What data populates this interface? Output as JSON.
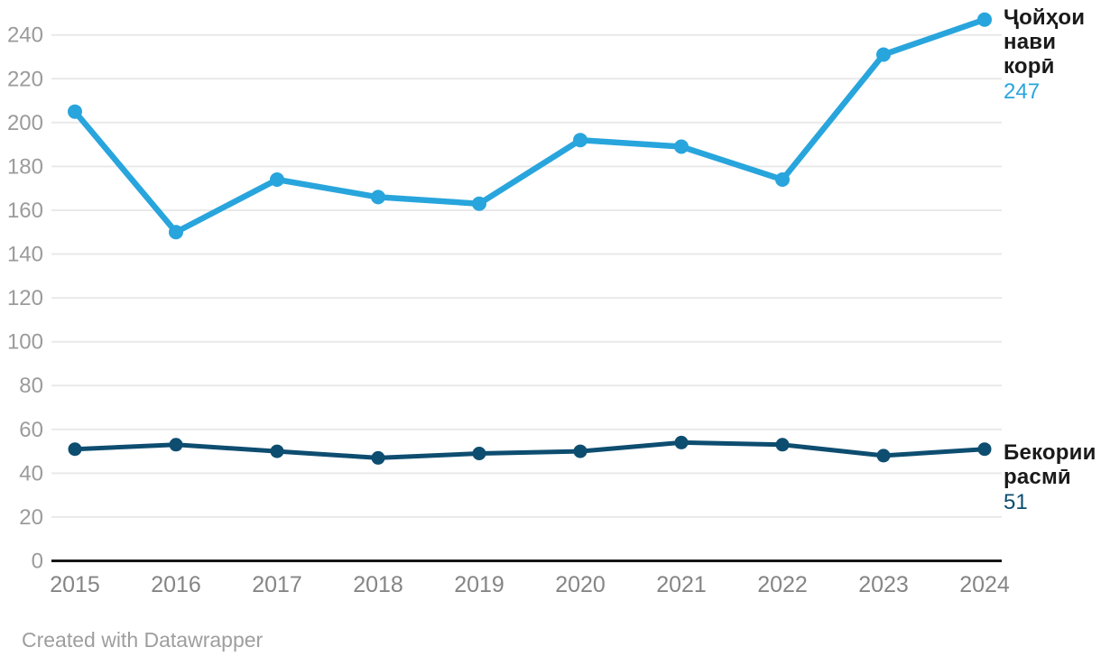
{
  "footer": {
    "credit": "Created with Datawrapper"
  },
  "colors": {
    "series_light": "#28a5dc",
    "series_dark": "#0d4d70",
    "grid": "#e9e9e9",
    "axis": "#161616",
    "ytick_text": "#9b9b9b",
    "xtick_text": "#858585",
    "legend_text": "#1a1a1a",
    "footer_text": "#9e9e9e"
  },
  "chart_data": {
    "type": "line",
    "x": [
      "2015",
      "2016",
      "2017",
      "2018",
      "2019",
      "2020",
      "2021",
      "2022",
      "2023",
      "2024"
    ],
    "series": [
      {
        "name": "Ҷойҳои нави корӣ",
        "end_label": "247",
        "color": "#28a5dc",
        "values": [
          205,
          150,
          174,
          166,
          163,
          192,
          189,
          174,
          231,
          247
        ]
      },
      {
        "name": "Бекории расмӣ",
        "end_label": "51",
        "color": "#0d4d70",
        "values": [
          51,
          53,
          50,
          47,
          49,
          50,
          54,
          53,
          48,
          51
        ]
      }
    ],
    "title": "",
    "xlabel": "",
    "ylabel": "",
    "ylim": [
      0,
      240
    ],
    "yticks": [
      0,
      20,
      40,
      60,
      80,
      100,
      120,
      140,
      160,
      180,
      200,
      220,
      240
    ],
    "grid": true,
    "legend_position": "right-of-line-ends"
  }
}
